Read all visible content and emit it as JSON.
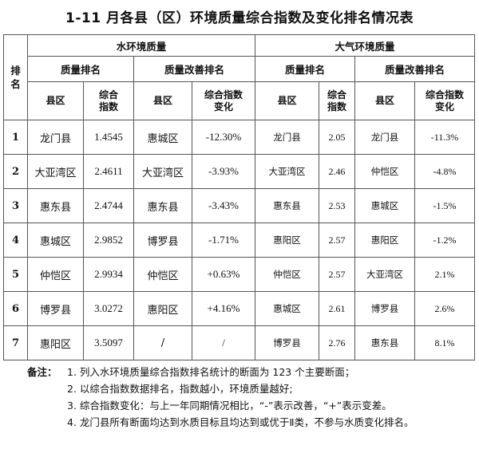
{
  "title": "1-11 月各县（区）环境质量综合指数及变化排名情况表",
  "header": {
    "rank": "排名",
    "water": "水环境质量",
    "air": "大气环境质量",
    "quality_rank": "质量排名",
    "improve_rank": "质量改善排名",
    "county": "县区",
    "index": "综合指数",
    "index_change": "综合指数变化"
  },
  "rows": [
    {
      "rank": "1",
      "w_q_county": "龙门县",
      "w_q_index": "1.4545",
      "w_i_county": "惠城区",
      "w_i_change": "-12.30%",
      "a_q_county": "龙门县",
      "a_q_index": "2.05",
      "a_i_county": "龙门县",
      "a_i_change": "-11.3%"
    },
    {
      "rank": "2",
      "w_q_county": "大亚湾区",
      "w_q_index": "2.4611",
      "w_i_county": "大亚湾区",
      "w_i_change": "-3.93%",
      "a_q_county": "大亚湾区",
      "a_q_index": "2.46",
      "a_i_county": "仲恺区",
      "a_i_change": "-4.8%"
    },
    {
      "rank": "3",
      "w_q_county": "惠东县",
      "w_q_index": "2.4744",
      "w_i_county": "惠东县",
      "w_i_change": "-3.43%",
      "a_q_county": "惠东县",
      "a_q_index": "2.53",
      "a_i_county": "惠城区",
      "a_i_change": "-1.5%"
    },
    {
      "rank": "4",
      "w_q_county": "惠城区",
      "w_q_index": "2.9852",
      "w_i_county": "博罗县",
      "w_i_change": "-1.71%",
      "a_q_county": "惠阳区",
      "a_q_index": "2.57",
      "a_i_county": "惠阳区",
      "a_i_change": "-1.2%"
    },
    {
      "rank": "5",
      "w_q_county": "仲恺区",
      "w_q_index": "2.9934",
      "w_i_county": "仲恺区",
      "w_i_change": "+0.63%",
      "a_q_county": "仲恺区",
      "a_q_index": "2.57",
      "a_i_county": "大亚湾区",
      "a_i_change": "2.1%"
    },
    {
      "rank": "6",
      "w_q_county": "博罗县",
      "w_q_index": "3.0272",
      "w_i_county": "惠阳区",
      "w_i_change": "+4.16%",
      "a_q_county": "惠城区",
      "a_q_index": "2.61",
      "a_i_county": "博罗县",
      "a_i_change": "2.6%"
    },
    {
      "rank": "7",
      "w_q_county": "惠阳区",
      "w_q_index": "3.5097",
      "w_i_county": "/",
      "w_i_change": "/",
      "a_q_county": "博罗县",
      "a_q_index": "2.76",
      "a_i_county": "惠东县",
      "a_i_change": "8.1%"
    }
  ],
  "notes": {
    "label": "备注：",
    "items": [
      "1. 列入水环境质量综合指数排名统计的断面为 123 个主要断面；",
      "2. 以综合指数数据排名，指数越小，环境质量越好;",
      "3. 综合指数变化：与上一年同期情况相比，“-”表示改善，“+”表示变差。",
      "4. 龙门县所有断面均达到水质目标且均达到或优于Ⅱ类，不参与水质变化排名。"
    ]
  }
}
